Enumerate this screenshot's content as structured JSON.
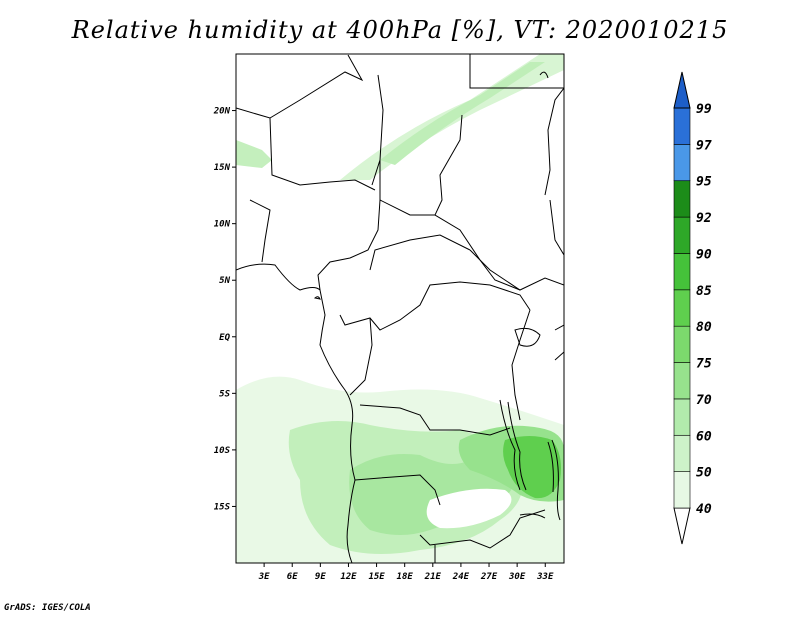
{
  "title": "Relative humidity at 400hPa [%], VT: 2020010215",
  "credit": "GrADS: IGES/COLA",
  "map": {
    "lon_range": [
      0,
      35
    ],
    "lat_range": [
      -20,
      25
    ],
    "lon_ticks": [
      "3E",
      "6E",
      "9E",
      "12E",
      "15E",
      "18E",
      "21E",
      "24E",
      "27E",
      "30E",
      "33E"
    ],
    "lat_ticks": [
      "20N",
      "15N",
      "10N",
      "5N",
      "EQ",
      "5S",
      "10S",
      "15S"
    ]
  },
  "colorbar": {
    "levels": [
      "40",
      "50",
      "60",
      "70",
      "75",
      "80",
      "85",
      "90",
      "92",
      "95",
      "97",
      "99"
    ],
    "colors": [
      "#ffffff",
      "#e6f8e4",
      "#cdf2c9",
      "#b2ebac",
      "#97e28d",
      "#7cd96d",
      "#5fcf4e",
      "#45c23a",
      "#2ea828",
      "#1c8c19",
      "#4a98e8",
      "#2a70d8",
      "#1d5ec8"
    ]
  },
  "humidity_areas": [
    {
      "name": "sahara-band",
      "color": "#d8f5d3"
    },
    {
      "name": "angola-zone",
      "color": "#c2efbb"
    },
    {
      "name": "zambia-zone",
      "color": "#a8e7a0"
    },
    {
      "name": "lake-malawi-zone",
      "color": "#5fcf4e"
    }
  ]
}
